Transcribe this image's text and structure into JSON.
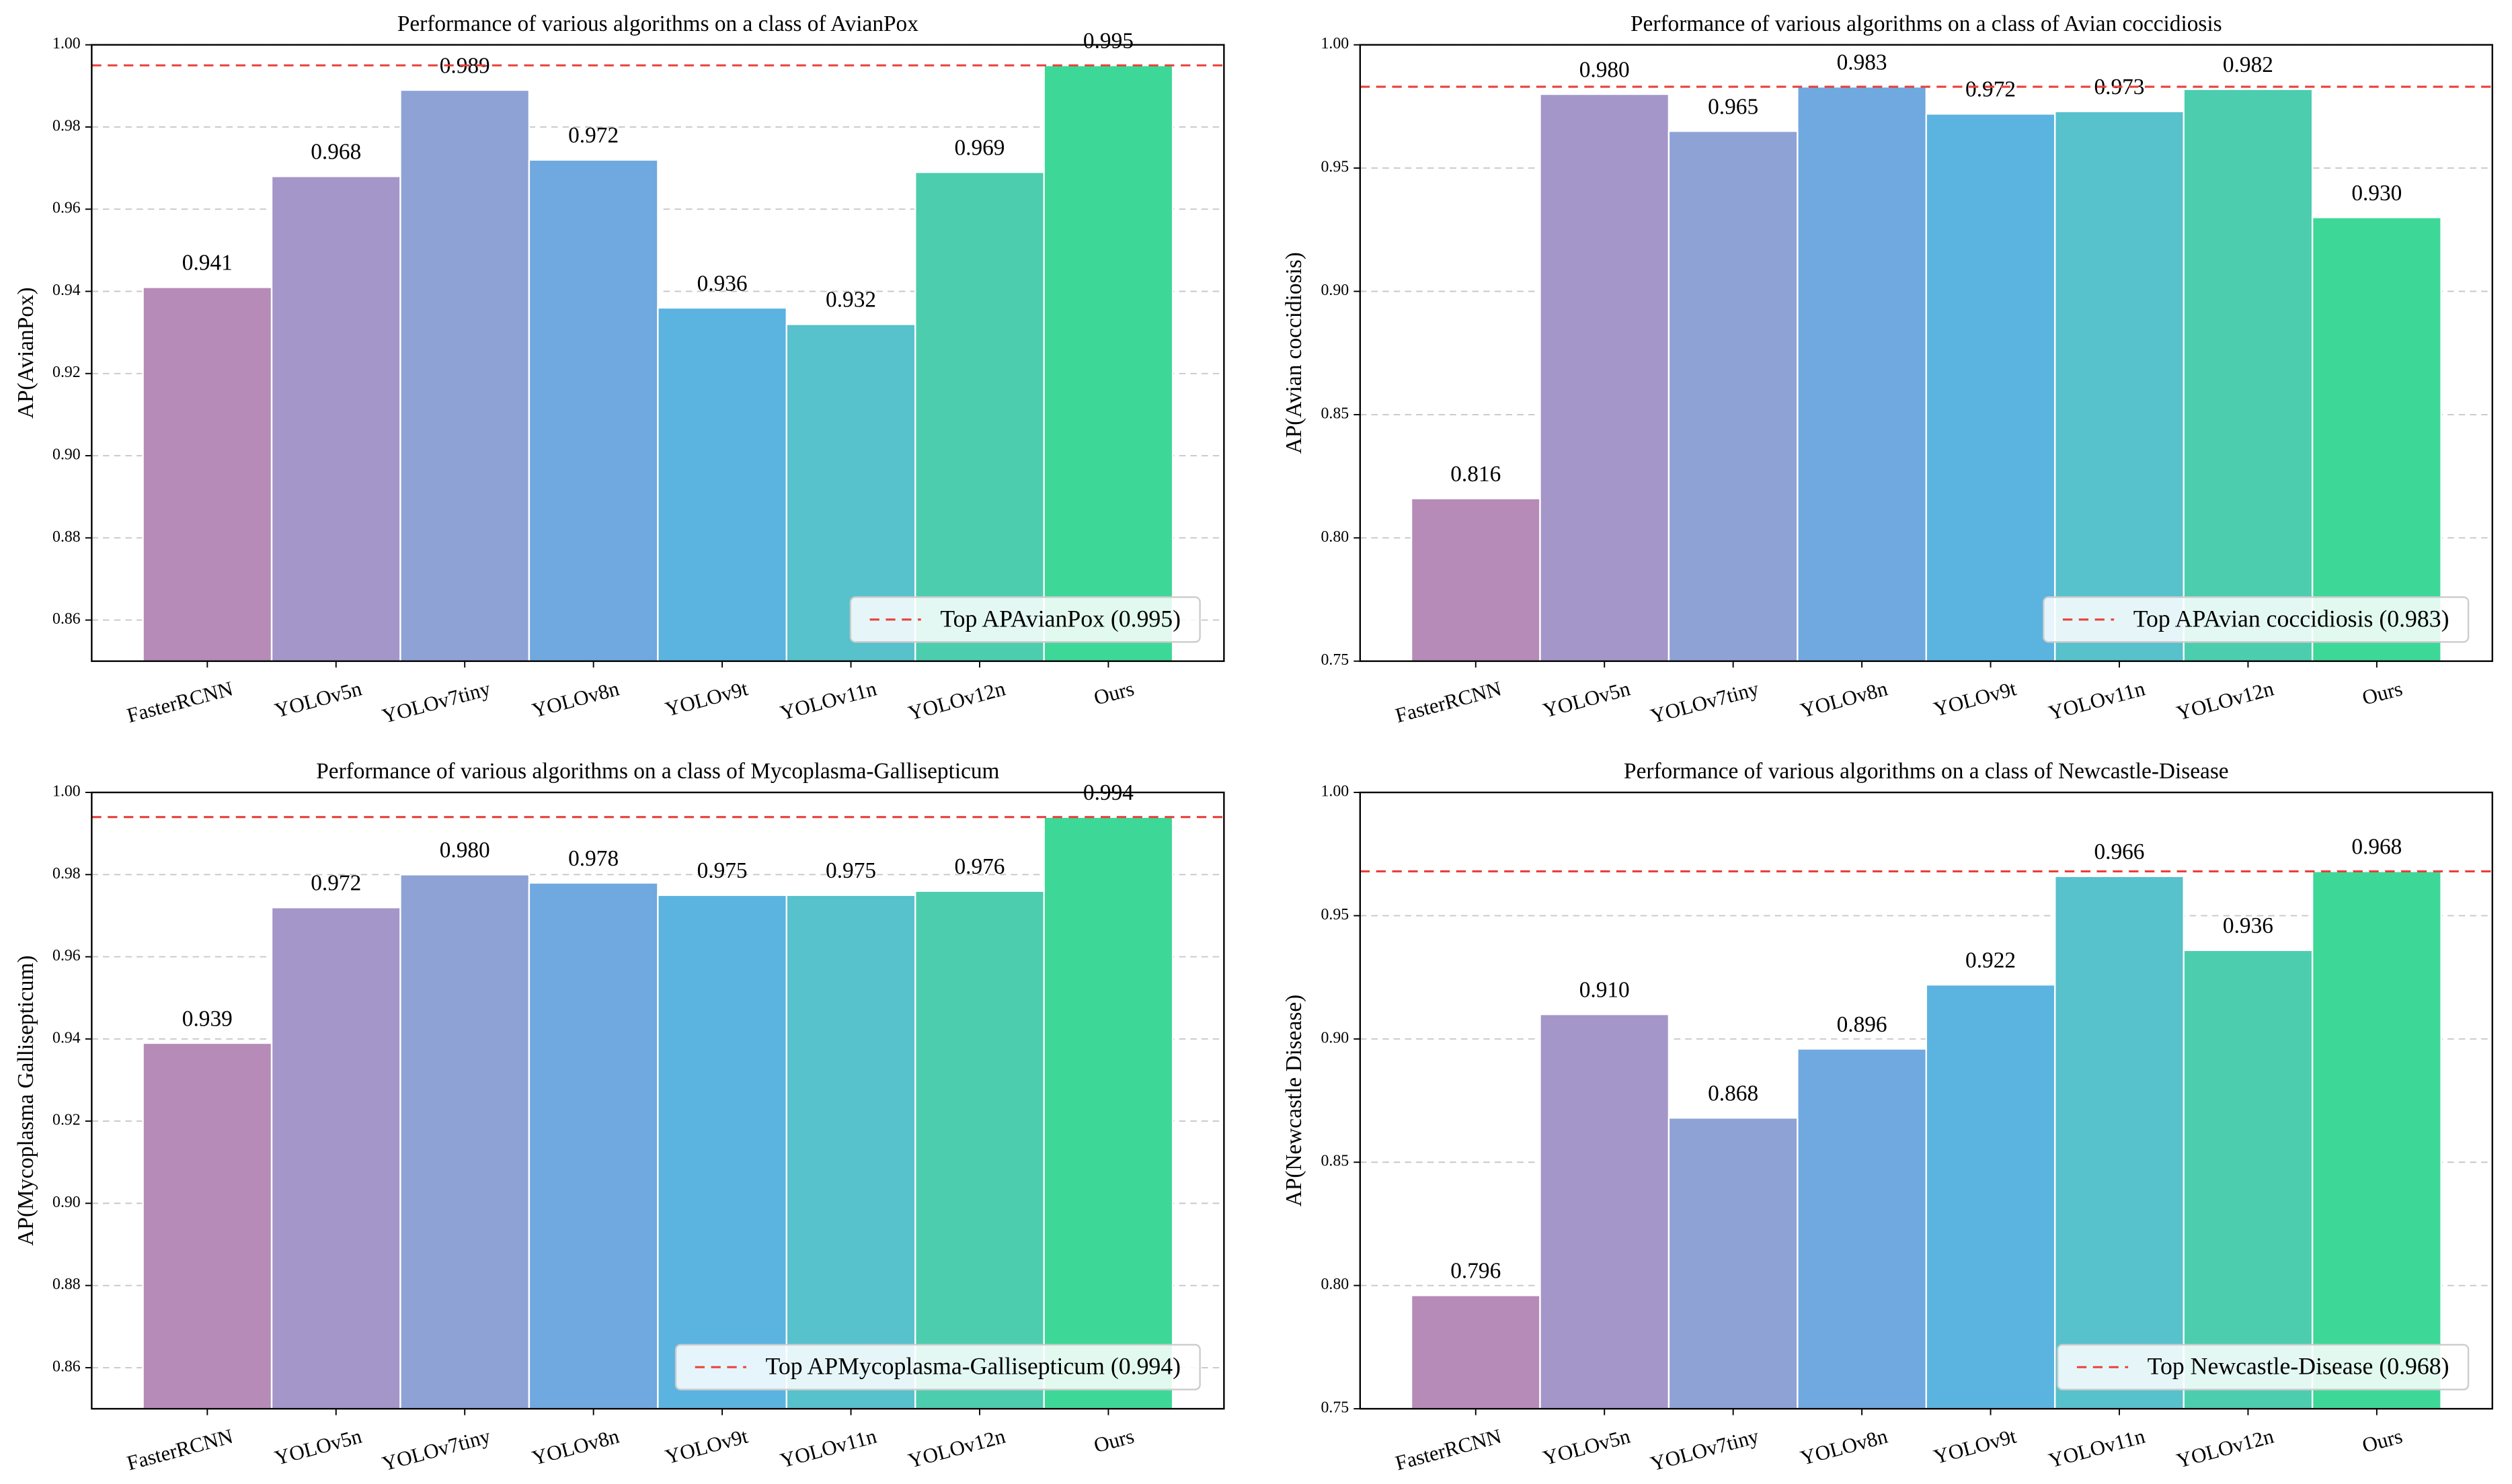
{
  "chart_data": [
    {
      "type": "bar",
      "title": "Performance of various algorithms on a class of AvianPox",
      "ylabel": "AP(AvianPox)",
      "categories": [
        "FasterRCNN",
        "YOLOv5n",
        "YOLOv7tiny",
        "YOLOv8n",
        "YOLOv9t",
        "YOLOv11n",
        "YOLOv12n",
        "Ours"
      ],
      "values": [
        0.941,
        0.968,
        0.989,
        0.972,
        0.936,
        0.932,
        0.969,
        0.995
      ],
      "value_labels": [
        "0.941",
        "0.968",
        "0.989",
        "0.972",
        "0.936",
        "0.932",
        "0.969",
        "0.995"
      ],
      "colors": [
        "#b68bb8",
        "#a496c9",
        "#8ea2d6",
        "#70a8e0",
        "#5bb3e0",
        "#57c1cc",
        "#4ccdae",
        "#3dd897"
      ],
      "ylim": [
        0.85,
        1.0
      ],
      "yticks": [
        0.86,
        0.88,
        {
          "value": 0.9,
          "label": "0.90"
        },
        0.92,
        0.94,
        0.96,
        0.98,
        {
          "value": 1.0,
          "label": "1.00"
        }
      ],
      "reference_line": {
        "value": 0.995,
        "label": "Top APAvianPox (0.995)",
        "color": "#e8413a"
      },
      "legend": "lower right",
      "grid": true
    },
    {
      "type": "bar",
      "title": "Performance of various algorithms on a class of Avian coccidiosis",
      "ylabel": "AP(Avian coccidiosis)",
      "categories": [
        "FasterRCNN",
        "YOLOv5n",
        "YOLOv7tiny",
        "YOLOv8n",
        "YOLOv9t",
        "YOLOv11n",
        "YOLOv12n",
        "Ours"
      ],
      "values": [
        0.816,
        0.98,
        0.965,
        0.983,
        0.972,
        0.973,
        0.982,
        0.93
      ],
      "value_labels": [
        "0.816",
        "0.980",
        "0.965",
        "0.983",
        "0.972",
        "0.973",
        "0.982",
        "0.930"
      ],
      "colors": [
        "#b68bb8",
        "#a496c9",
        "#8ea2d6",
        "#70a8e0",
        "#5bb3e0",
        "#57c1cc",
        "#4ccdae",
        "#3dd897"
      ],
      "ylim": [
        0.75,
        1.0
      ],
      "yticks": [
        0.75,
        {
          "value": 0.8,
          "label": "0.80"
        },
        0.85,
        {
          "value": 0.9,
          "label": "0.90"
        },
        0.95,
        {
          "value": 1.0,
          "label": "1.00"
        }
      ],
      "reference_line": {
        "value": 0.983,
        "label": "Top APAvian coccidiosis (0.983)",
        "color": "#e8413a"
      },
      "legend": "lower right",
      "grid": true
    },
    {
      "type": "bar",
      "title": "Performance of various algorithms on a class of Mycoplasma-Gallisepticum",
      "ylabel": "AP(Mycoplasma Gallisepticum)",
      "categories": [
        "FasterRCNN",
        "YOLOv5n",
        "YOLOv7tiny",
        "YOLOv8n",
        "YOLOv9t",
        "YOLOv11n",
        "YOLOv12n",
        "Ours"
      ],
      "values": [
        0.939,
        0.972,
        0.98,
        0.978,
        0.975,
        0.975,
        0.976,
        0.994
      ],
      "value_labels": [
        "0.939",
        "0.972",
        "0.980",
        "0.978",
        "0.975",
        "0.975",
        "0.976",
        "0.994"
      ],
      "colors": [
        "#b68bb8",
        "#a496c9",
        "#8ea2d6",
        "#70a8e0",
        "#5bb3e0",
        "#57c1cc",
        "#4ccdae",
        "#3dd897"
      ],
      "ylim": [
        0.85,
        1.0
      ],
      "yticks": [
        0.86,
        0.88,
        {
          "value": 0.9,
          "label": "0.90"
        },
        0.92,
        0.94,
        0.96,
        0.98,
        {
          "value": 1.0,
          "label": "1.00"
        }
      ],
      "reference_line": {
        "value": 0.994,
        "label": "Top APMycoplasma-Gallisepticum (0.994)",
        "color": "#e8413a"
      },
      "legend": "lower right",
      "grid": true
    },
    {
      "type": "bar",
      "title": "Performance of various algorithms on a class of Newcastle-Disease",
      "ylabel": "AP(Newcastle Disease)",
      "categories": [
        "FasterRCNN",
        "YOLOv5n",
        "YOLOv7tiny",
        "YOLOv8n",
        "YOLOv9t",
        "YOLOv11n",
        "YOLOv12n",
        "Ours"
      ],
      "values": [
        0.796,
        0.91,
        0.868,
        0.896,
        0.922,
        0.966,
        0.936,
        0.968
      ],
      "value_labels": [
        "0.796",
        "0.910",
        "0.868",
        "0.896",
        "0.922",
        "0.966",
        "0.936",
        "0.968"
      ],
      "colors": [
        "#b68bb8",
        "#a496c9",
        "#8ea2d6",
        "#70a8e0",
        "#5bb3e0",
        "#57c1cc",
        "#4ccdae",
        "#3dd897"
      ],
      "ylim": [
        0.75,
        1.0
      ],
      "yticks": [
        0.75,
        {
          "value": 0.8,
          "label": "0.80"
        },
        0.85,
        {
          "value": 0.9,
          "label": "0.90"
        },
        0.95,
        {
          "value": 1.0,
          "label": "1.00"
        }
      ],
      "reference_line": {
        "value": 0.968,
        "label": "Top Newcastle-Disease (0.968)",
        "color": "#e8413a"
      },
      "legend": "lower right",
      "grid": true
    }
  ]
}
